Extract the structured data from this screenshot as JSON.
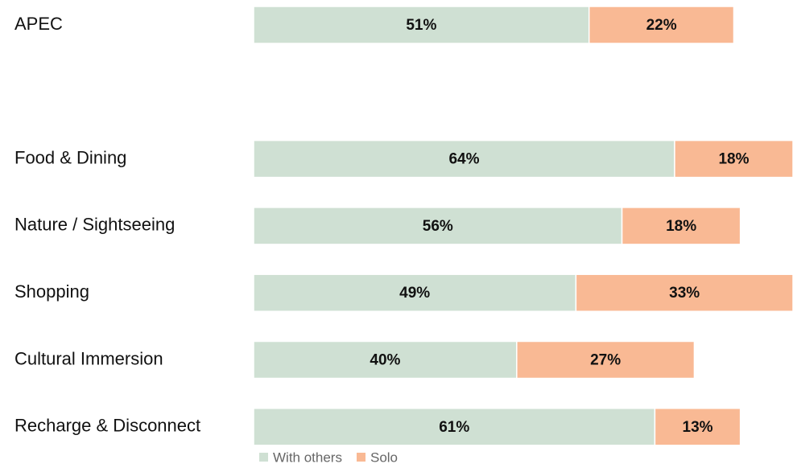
{
  "chart_data": {
    "type": "stacked-bar-horizontal",
    "categories": [
      "APEC",
      null,
      "Food & Dining",
      "Nature / Sightseeing",
      "Shopping",
      "Cultural Immersion",
      "Recharge & Disconnect"
    ],
    "series": [
      {
        "name": "With others",
        "color": "#cfe0d3",
        "values": [
          51,
          null,
          64,
          56,
          49,
          40,
          61
        ],
        "value_labels": [
          "51%",
          null,
          "64%",
          "56%",
          "49%",
          "40%",
          "61%"
        ]
      },
      {
        "name": "Solo",
        "color": "#f9b994",
        "values": [
          22,
          null,
          18,
          18,
          33,
          27,
          13
        ],
        "value_labels": [
          "22%",
          null,
          "18%",
          "18%",
          "33%",
          "27%",
          "13%"
        ]
      }
    ],
    "xlim": [
      0,
      82
    ]
  }
}
